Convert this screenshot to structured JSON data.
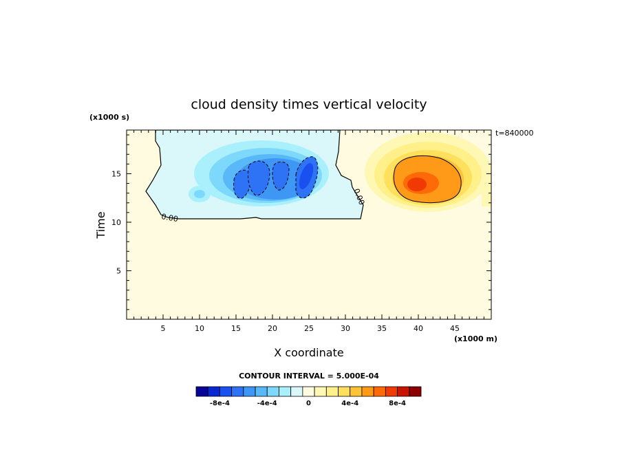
{
  "chart_data": {
    "type": "heatmap",
    "title": "cloud density times vertical velocity",
    "xlabel": "X coordinate",
    "ylabel": "Time",
    "x_unit": "(x1000 m)",
    "y_unit": "(x1000 s)",
    "time_label": "t=840000",
    "xlim": [
      0,
      50
    ],
    "ylim": [
      0,
      19.5
    ],
    "x_ticks": [
      "5",
      "10",
      "15",
      "20",
      "25",
      "30",
      "35",
      "40",
      "45"
    ],
    "y_ticks": [
      "5",
      "10",
      "15"
    ],
    "contour_interval_label": "CONTOUR INTERVAL = 5.000E-04",
    "contour_labels": [
      "0.00",
      "0.00"
    ],
    "colorbar": {
      "colors": [
        "#08049a",
        "#0a28d0",
        "#1a4ff0",
        "#2e73f5",
        "#3e96f5",
        "#58b8f8",
        "#7ed8fb",
        "#aaf0fc",
        "#daf8fa",
        "#fffbe0",
        "#fff7b4",
        "#fff08a",
        "#ffe05c",
        "#ffc338",
        "#ff9a18",
        "#ff6a08",
        "#f03a04",
        "#c81402",
        "#8c0000"
      ],
      "tick_labels": [
        "-8e-4",
        "-4e-4",
        "0",
        "4e-4",
        "8e-4"
      ]
    },
    "features": [
      {
        "name": "negative updraft region",
        "x_range": [
          2,
          32
        ],
        "y_range": [
          10.7,
          19.5
        ],
        "min_value": -0.0008
      },
      {
        "name": "positive core",
        "x_range": [
          33,
          50
        ],
        "y_range": [
          12,
          19.5
        ],
        "max_value": 0.0008,
        "center": [
          40,
          14.5
        ]
      }
    ]
  }
}
